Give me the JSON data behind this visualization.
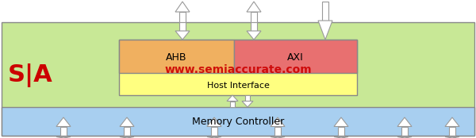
{
  "bg_outer": "#ffffff",
  "bg_green": "#c8e896",
  "bg_yellow": "#ffff80",
  "bg_ahb": "#f0b060",
  "bg_axi": "#e87070",
  "bg_memory": "#a8cff0",
  "text_watermark": "www.semiaccurate.com",
  "text_watermark_color": "#cc0000",
  "text_sa": "S|A",
  "text_sa_color": "#cc0000",
  "text_ahb": "AHB",
  "text_axi": "AXI",
  "text_host": "Host Interface",
  "text_memory": "Memory Controller",
  "arrow_fc": "#ffffff",
  "arrow_ec": "#999999"
}
